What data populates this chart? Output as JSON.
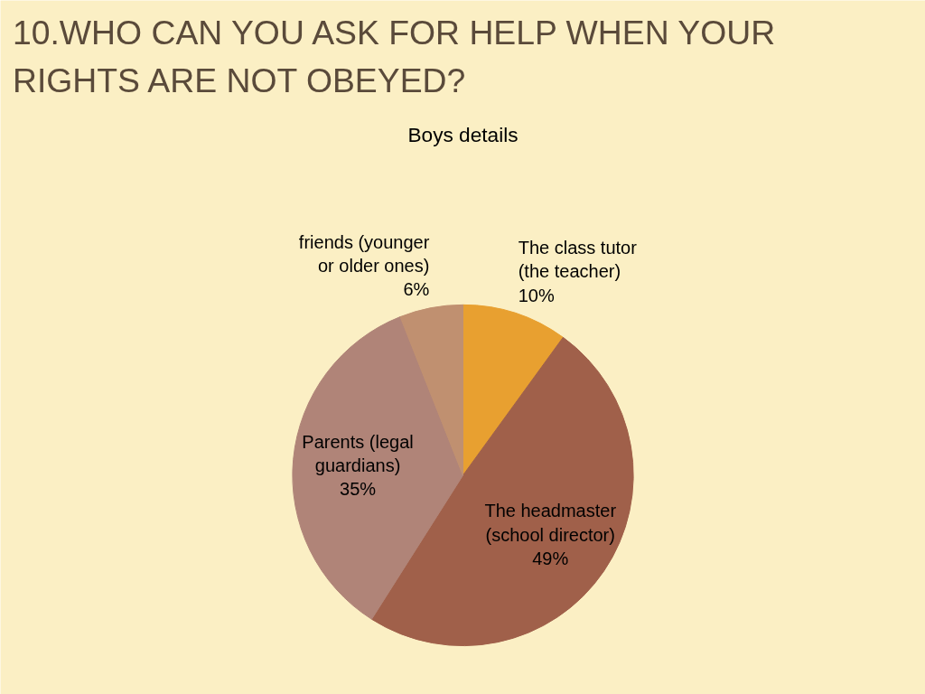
{
  "chart_data": {
    "type": "pie",
    "title": "10.WHO CAN YOU ASK FOR HELP WHEN YOUR RIGHTS ARE NOT OBEYED?",
    "subtitle": "Boys details",
    "categories": [
      "The class tutor (the teacher)",
      "The headmaster (school director)",
      "Parents (legal guardians)",
      "friends (younger or older ones)"
    ],
    "values": [
      10,
      49,
      35,
      6
    ],
    "value_labels": [
      "10%",
      "49%",
      "35%",
      "6%"
    ],
    "colors": [
      "#e8a030",
      "#a0604a",
      "#b08478",
      "#c09070"
    ]
  }
}
